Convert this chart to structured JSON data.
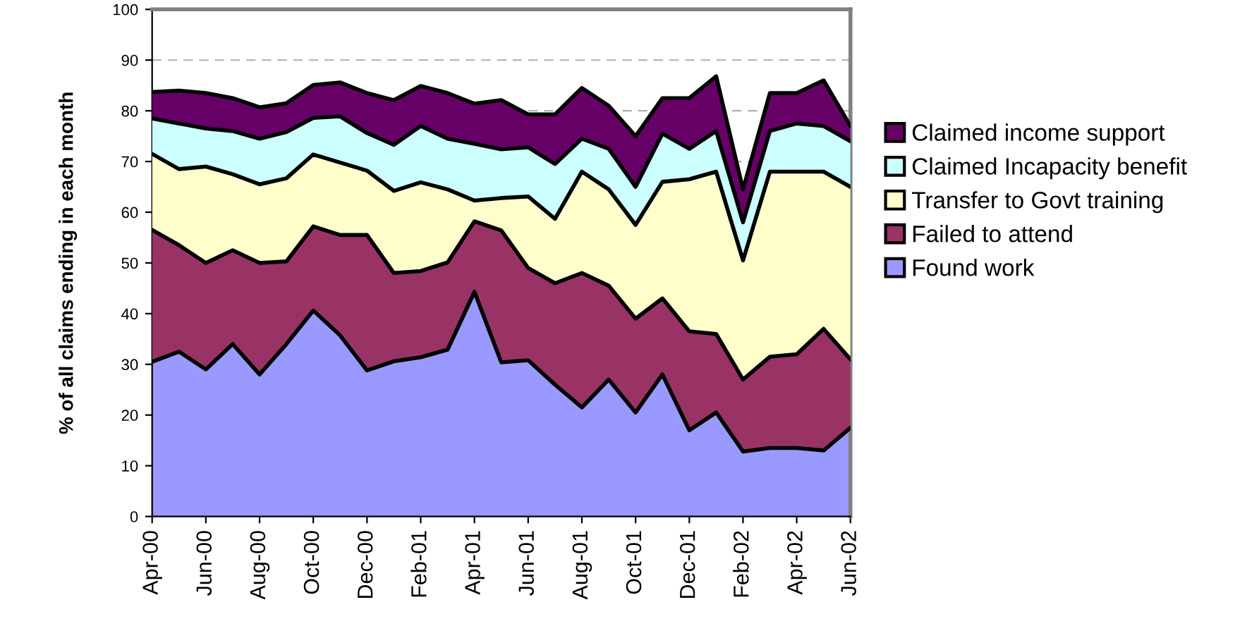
{
  "chart_data": {
    "type": "area",
    "stacked": true,
    "ylabel": "% of all claims ending in each month",
    "categories": [
      "Apr-00",
      null,
      "Jun-00",
      null,
      "Aug-00",
      null,
      "Oct-00",
      null,
      "Dec-00",
      null,
      "Feb-01",
      null,
      "Apr-01",
      null,
      "Jun-01",
      null,
      "Aug-01",
      null,
      "Oct-01",
      null,
      "Dec-01",
      null,
      "Feb-02",
      null,
      "Apr-02",
      null,
      "Jun-02"
    ],
    "series": [
      {
        "name": "Found work",
        "color": "#9999ff",
        "values": [
          30.5,
          32.5,
          29,
          34,
          28,
          34,
          40.6,
          35.7,
          28.8,
          30.6,
          31.4,
          32.9,
          44.3,
          30.4,
          30.8,
          26,
          21.5,
          27,
          20.5,
          28,
          17,
          20.5,
          12.8,
          13.5,
          13.5,
          13,
          17.5
        ]
      },
      {
        "name": "Failed to attend",
        "color": "#993366",
        "values": [
          26,
          21,
          21,
          18.5,
          22,
          16.3,
          16.6,
          19.8,
          26.7,
          17.4,
          17,
          17.2,
          13.9,
          26,
          18.2,
          20,
          26.5,
          18.5,
          18.5,
          15,
          19.5,
          15.5,
          14.2,
          18,
          18.5,
          24,
          13.5
        ]
      },
      {
        "name": "Transfer to Govt training",
        "color": "#ffffcc",
        "values": [
          15,
          15,
          19,
          15,
          15.5,
          16.4,
          14.2,
          14.3,
          12.7,
          16.2,
          17.5,
          14.4,
          4.1,
          6.4,
          14.1,
          12.7,
          20,
          19,
          18.5,
          23,
          30,
          32,
          23.5,
          36.5,
          36,
          31,
          34
        ]
      },
      {
        "name": "Claimed Incapacity benefit",
        "color": "#ccffff",
        "values": [
          7,
          9,
          7.5,
          8.5,
          9,
          9.1,
          7.2,
          9.1,
          7.4,
          9.1,
          11.1,
          10,
          11.2,
          9.6,
          9.7,
          10.8,
          6.5,
          8,
          7.5,
          9.5,
          6,
          8,
          7.5,
          8,
          9.5,
          9,
          9
        ]
      },
      {
        "name": "Claimed income support",
        "color": "#660066",
        "values": [
          5.2,
          6.5,
          7,
          6.5,
          6.2,
          5.7,
          6.5,
          6.7,
          7.9,
          8.8,
          7.9,
          9,
          7.9,
          9.7,
          6.5,
          9.8,
          10,
          8.5,
          10,
          7,
          10,
          10.8,
          6.5,
          7.5,
          6,
          9,
          3
        ]
      }
    ],
    "ylim": [
      0,
      100
    ],
    "yticks": [
      0,
      10,
      20,
      30,
      40,
      50,
      60,
      70,
      80,
      90,
      100
    ],
    "grid": "y",
    "legend": "right"
  }
}
